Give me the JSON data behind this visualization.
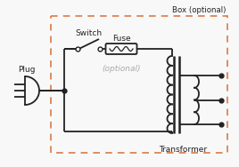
{
  "bg_color": "#f8f8f8",
  "line_color": "#222222",
  "box_color": "#d4703a",
  "optional_text_color": "#aaaaaa",
  "plug_label": "Plug",
  "switch_label": "Switch",
  "fuse_label": "Fuse",
  "optional_label": "(optional)",
  "transformer_label": "Transformer",
  "box_label": "Box (optional)",
  "fig_width": 2.68,
  "fig_height": 1.88,
  "dpi": 100
}
